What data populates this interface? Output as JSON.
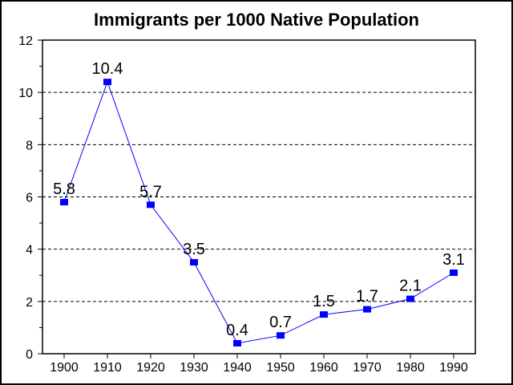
{
  "chart_data": {
    "type": "line",
    "title": "Immigrants per 1000 Native Population",
    "xlabel": "",
    "ylabel": "",
    "categories": [
      "1900",
      "1910",
      "1920",
      "1930",
      "1940",
      "1950",
      "1960",
      "1970",
      "1980",
      "1990"
    ],
    "series": [
      {
        "name": "Immigrants per 1000 Native Population",
        "values": [
          5.8,
          10.4,
          5.7,
          3.5,
          0.4,
          0.7,
          1.5,
          1.7,
          2.1,
          3.1
        ],
        "labels": [
          "5.8",
          "10.4",
          "5.7",
          "3.5",
          "0.4",
          "0.7",
          "1.5",
          "1.7",
          "2.1",
          "3.1"
        ],
        "color": "#0000ff"
      }
    ],
    "ylim": [
      0,
      12
    ],
    "yticks": [
      0,
      2,
      4,
      6,
      8,
      10,
      12
    ],
    "yticklabels": [
      "0",
      "2",
      "4",
      "6",
      "8",
      "10",
      "12"
    ],
    "grid": "horizontal dashed",
    "legend": "none"
  }
}
